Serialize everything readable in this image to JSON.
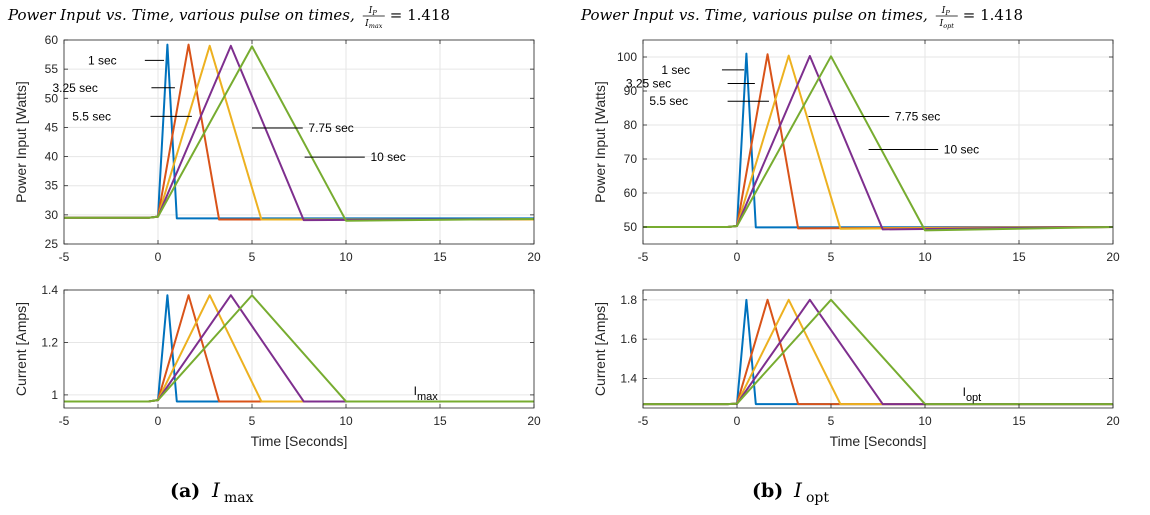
{
  "chart_data": [
    {
      "id": "a",
      "type": "line",
      "title": {
        "text": "Power Input vs. Time, various pulse on times,",
        "frac_num": "I",
        "frac_num_sub": "P",
        "frac_den": "I",
        "frac_den_sub": "max",
        "equals": "= 1.418"
      },
      "caption": {
        "label": "(a)",
        "symbol": "I",
        "sub": "max"
      },
      "top": {
        "ylabel": "Power Input [Watts]",
        "xlim": [
          -5,
          20
        ],
        "ylim": [
          25,
          60
        ],
        "xticks": [
          "-5",
          "0",
          "5",
          "10",
          "15",
          "20"
        ],
        "yticks": [
          "25",
          "30",
          "35",
          "40",
          "45",
          "50",
          "55",
          "60"
        ],
        "grid": true,
        "series": [
          {
            "label": "1 sec",
            "color": "#0072BD",
            "x": [
              -5,
              -0.5,
              0,
              0.5,
              1.0,
              20
            ],
            "y": [
              29.5,
              29.5,
              29.7,
              59.2,
              29.4,
              29.4
            ]
          },
          {
            "label": "3.25 sec",
            "color": "#D95319",
            "x": [
              -5,
              -0.5,
              0,
              1.625,
              3.25,
              20
            ],
            "y": [
              29.5,
              29.5,
              29.7,
              59.2,
              29.2,
              29.2
            ]
          },
          {
            "label": "5.5 sec",
            "color": "#EDB120",
            "x": [
              -5,
              -0.5,
              0,
              2.75,
              5.5,
              20
            ],
            "y": [
              29.5,
              29.5,
              29.7,
              59.0,
              29.2,
              29.2
            ]
          },
          {
            "label": "7.75 sec",
            "color": "#7E2F8E",
            "x": [
              -5,
              -0.5,
              0,
              3.875,
              7.75,
              20
            ],
            "y": [
              29.5,
              29.5,
              29.7,
              59.0,
              29.1,
              29.3
            ]
          },
          {
            "label": "10 sec",
            "color": "#77AC30",
            "x": [
              -5,
              -0.5,
              0,
              5.0,
              10.0,
              20
            ],
            "y": [
              29.5,
              29.5,
              29.7,
              58.9,
              29.0,
              29.3
            ]
          }
        ],
        "annotations": [
          {
            "text": "1 sec",
            "x": -2.2,
            "y": 56.5,
            "lx0": -0.7,
            "lx1": 0.32,
            "ly": 56.5
          },
          {
            "text": "3.25 sec",
            "x": -3.2,
            "y": 51.8,
            "lx0": -0.35,
            "lx1": 0.9,
            "ly": 51.8
          },
          {
            "text": "5.5 sec",
            "x": -2.5,
            "y": 46.9,
            "lx0": -0.4,
            "lx1": 1.8,
            "ly": 46.9
          },
          {
            "text": "7.75 sec",
            "x": 8.0,
            "y": 44.9,
            "lx0": 5.0,
            "lx1": 7.7,
            "ly": 44.9
          },
          {
            "text": "10 sec",
            "x": 11.3,
            "y": 39.9,
            "lx0": 7.8,
            "lx1": 11.0,
            "ly": 39.9
          }
        ]
      },
      "bottom": {
        "ylabel": "Current [Amps]",
        "xlabel": "Time [Seconds]",
        "xlim": [
          -5,
          20
        ],
        "ylim": [
          0.95,
          1.4
        ],
        "xticks": [
          "-5",
          "0",
          "5",
          "10",
          "15",
          "20"
        ],
        "yticks": [
          "1",
          "1.2",
          "1.4"
        ],
        "grid": true,
        "series": [
          {
            "label": "1 sec",
            "color": "#0072BD",
            "x": [
              -5,
              -0.5,
              0,
              0.5,
              1.0,
              20
            ],
            "y": [
              0.975,
              0.975,
              0.98,
              1.38,
              0.975,
              0.975
            ]
          },
          {
            "label": "3.25 sec",
            "color": "#D95319",
            "x": [
              -5,
              -0.5,
              0,
              1.625,
              3.25,
              20
            ],
            "y": [
              0.975,
              0.975,
              0.98,
              1.38,
              0.975,
              0.975
            ]
          },
          {
            "label": "5.5 sec",
            "color": "#EDB120",
            "x": [
              -5,
              -0.5,
              0,
              2.75,
              5.5,
              20
            ],
            "y": [
              0.975,
              0.975,
              0.98,
              1.38,
              0.975,
              0.975
            ]
          },
          {
            "label": "7.75 sec",
            "color": "#7E2F8E",
            "x": [
              -5,
              -0.5,
              0,
              3.875,
              7.75,
              20
            ],
            "y": [
              0.975,
              0.975,
              0.98,
              1.38,
              0.975,
              0.975
            ]
          },
          {
            "label": "10 sec",
            "color": "#77AC30",
            "x": [
              -5,
              -0.5,
              0,
              5.0,
              10.0,
              20
            ],
            "y": [
              0.975,
              0.975,
              0.98,
              1.38,
              0.975,
              0.975
            ]
          }
        ],
        "label_text": "I",
        "label_sub": "max",
        "label_pos": {
          "x": 13.6,
          "y": 1.0
        }
      }
    },
    {
      "id": "b",
      "type": "line",
      "title": {
        "text": "Power Input vs. Time, various pulse on times,",
        "frac_num": "I",
        "frac_num_sub": "P",
        "frac_den": "I",
        "frac_den_sub": "opt",
        "equals": "= 1.418"
      },
      "caption": {
        "label": "(b)",
        "symbol": "I",
        "sub": "opt"
      },
      "top": {
        "ylabel": "Power Input [Watts]",
        "xlim": [
          -5,
          20
        ],
        "ylim": [
          45,
          105
        ],
        "xticks": [
          "-5",
          "0",
          "5",
          "10",
          "15",
          "20"
        ],
        "yticks": [
          "50",
          "60",
          "70",
          "80",
          "90",
          "100"
        ],
        "grid": true,
        "series": [
          {
            "label": "1 sec",
            "color": "#0072BD",
            "x": [
              -5,
              -0.5,
              0,
              0.5,
              1.0,
              20
            ],
            "y": [
              50.0,
              50.0,
              50.3,
              101.0,
              49.9,
              50.0
            ]
          },
          {
            "label": "3.25 sec",
            "color": "#D95319",
            "x": [
              -5,
              -0.5,
              0,
              1.625,
              3.25,
              20
            ],
            "y": [
              50.0,
              50.0,
              50.3,
              100.8,
              49.6,
              50.0
            ]
          },
          {
            "label": "5.5 sec",
            "color": "#EDB120",
            "x": [
              -5,
              -0.5,
              0,
              2.75,
              5.5,
              20
            ],
            "y": [
              50.0,
              50.0,
              50.3,
              100.4,
              49.5,
              50.0
            ]
          },
          {
            "label": "7.75 sec",
            "color": "#7E2F8E",
            "x": [
              -5,
              -0.5,
              0,
              3.875,
              7.75,
              20
            ],
            "y": [
              50.0,
              50.0,
              50.3,
              100.3,
              49.3,
              50.0
            ]
          },
          {
            "label": "10 sec",
            "color": "#77AC30",
            "x": [
              -5,
              -0.5,
              0,
              5.0,
              10.0,
              20
            ],
            "y": [
              50.0,
              50.0,
              50.3,
              100.2,
              49.0,
              50.0
            ]
          }
        ],
        "annotations": [
          {
            "text": "1 sec",
            "x": -2.5,
            "y": 96.2,
            "lx0": -0.8,
            "lx1": 0.38,
            "ly": 96.2
          },
          {
            "text": "3.25 sec",
            "x": -3.5,
            "y": 92.2,
            "lx0": -0.5,
            "lx1": 0.95,
            "ly": 92.2
          },
          {
            "text": "5.5 sec",
            "x": -2.6,
            "y": 87.0,
            "lx0": -0.5,
            "lx1": 1.7,
            "ly": 87.0
          },
          {
            "text": "7.75 sec",
            "x": 8.4,
            "y": 82.5,
            "lx0": 3.8,
            "lx1": 8.1,
            "ly": 82.5
          },
          {
            "text": "10 sec",
            "x": 11.0,
            "y": 72.8,
            "lx0": 7.0,
            "lx1": 10.7,
            "ly": 72.8
          }
        ]
      },
      "bottom": {
        "ylabel": "Current [Amps]",
        "xlabel": "Time [Seconds]",
        "xlim": [
          -5,
          20
        ],
        "ylim": [
          1.25,
          1.85
        ],
        "xticks": [
          "-5",
          "0",
          "5",
          "10",
          "15",
          "20"
        ],
        "yticks": [
          "1.4",
          "1.6",
          "1.8"
        ],
        "grid": true,
        "series": [
          {
            "label": "1 sec",
            "color": "#0072BD",
            "x": [
              -5,
              -0.5,
              0,
              0.5,
              1.0,
              20
            ],
            "y": [
              1.27,
              1.27,
              1.272,
              1.8,
              1.27,
              1.27
            ]
          },
          {
            "label": "3.25 sec",
            "color": "#D95319",
            "x": [
              -5,
              -0.5,
              0,
              1.625,
              3.25,
              20
            ],
            "y": [
              1.27,
              1.27,
              1.272,
              1.8,
              1.27,
              1.27
            ]
          },
          {
            "label": "5.5 sec",
            "color": "#EDB120",
            "x": [
              -5,
              -0.5,
              0,
              2.75,
              5.5,
              20
            ],
            "y": [
              1.27,
              1.27,
              1.272,
              1.8,
              1.27,
              1.27
            ]
          },
          {
            "label": "7.75 sec",
            "color": "#7E2F8E",
            "x": [
              -5,
              -0.5,
              0,
              3.875,
              7.75,
              20
            ],
            "y": [
              1.27,
              1.27,
              1.272,
              1.8,
              1.27,
              1.27
            ]
          },
          {
            "label": "10 sec",
            "color": "#77AC30",
            "x": [
              -5,
              -0.5,
              0,
              5.0,
              10.0,
              20
            ],
            "y": [
              1.27,
              1.27,
              1.272,
              1.8,
              1.27,
              1.27
            ]
          }
        ],
        "label_text": "I",
        "label_sub": "opt",
        "label_pos": {
          "x": 12.0,
          "y": 1.31
        }
      }
    }
  ]
}
